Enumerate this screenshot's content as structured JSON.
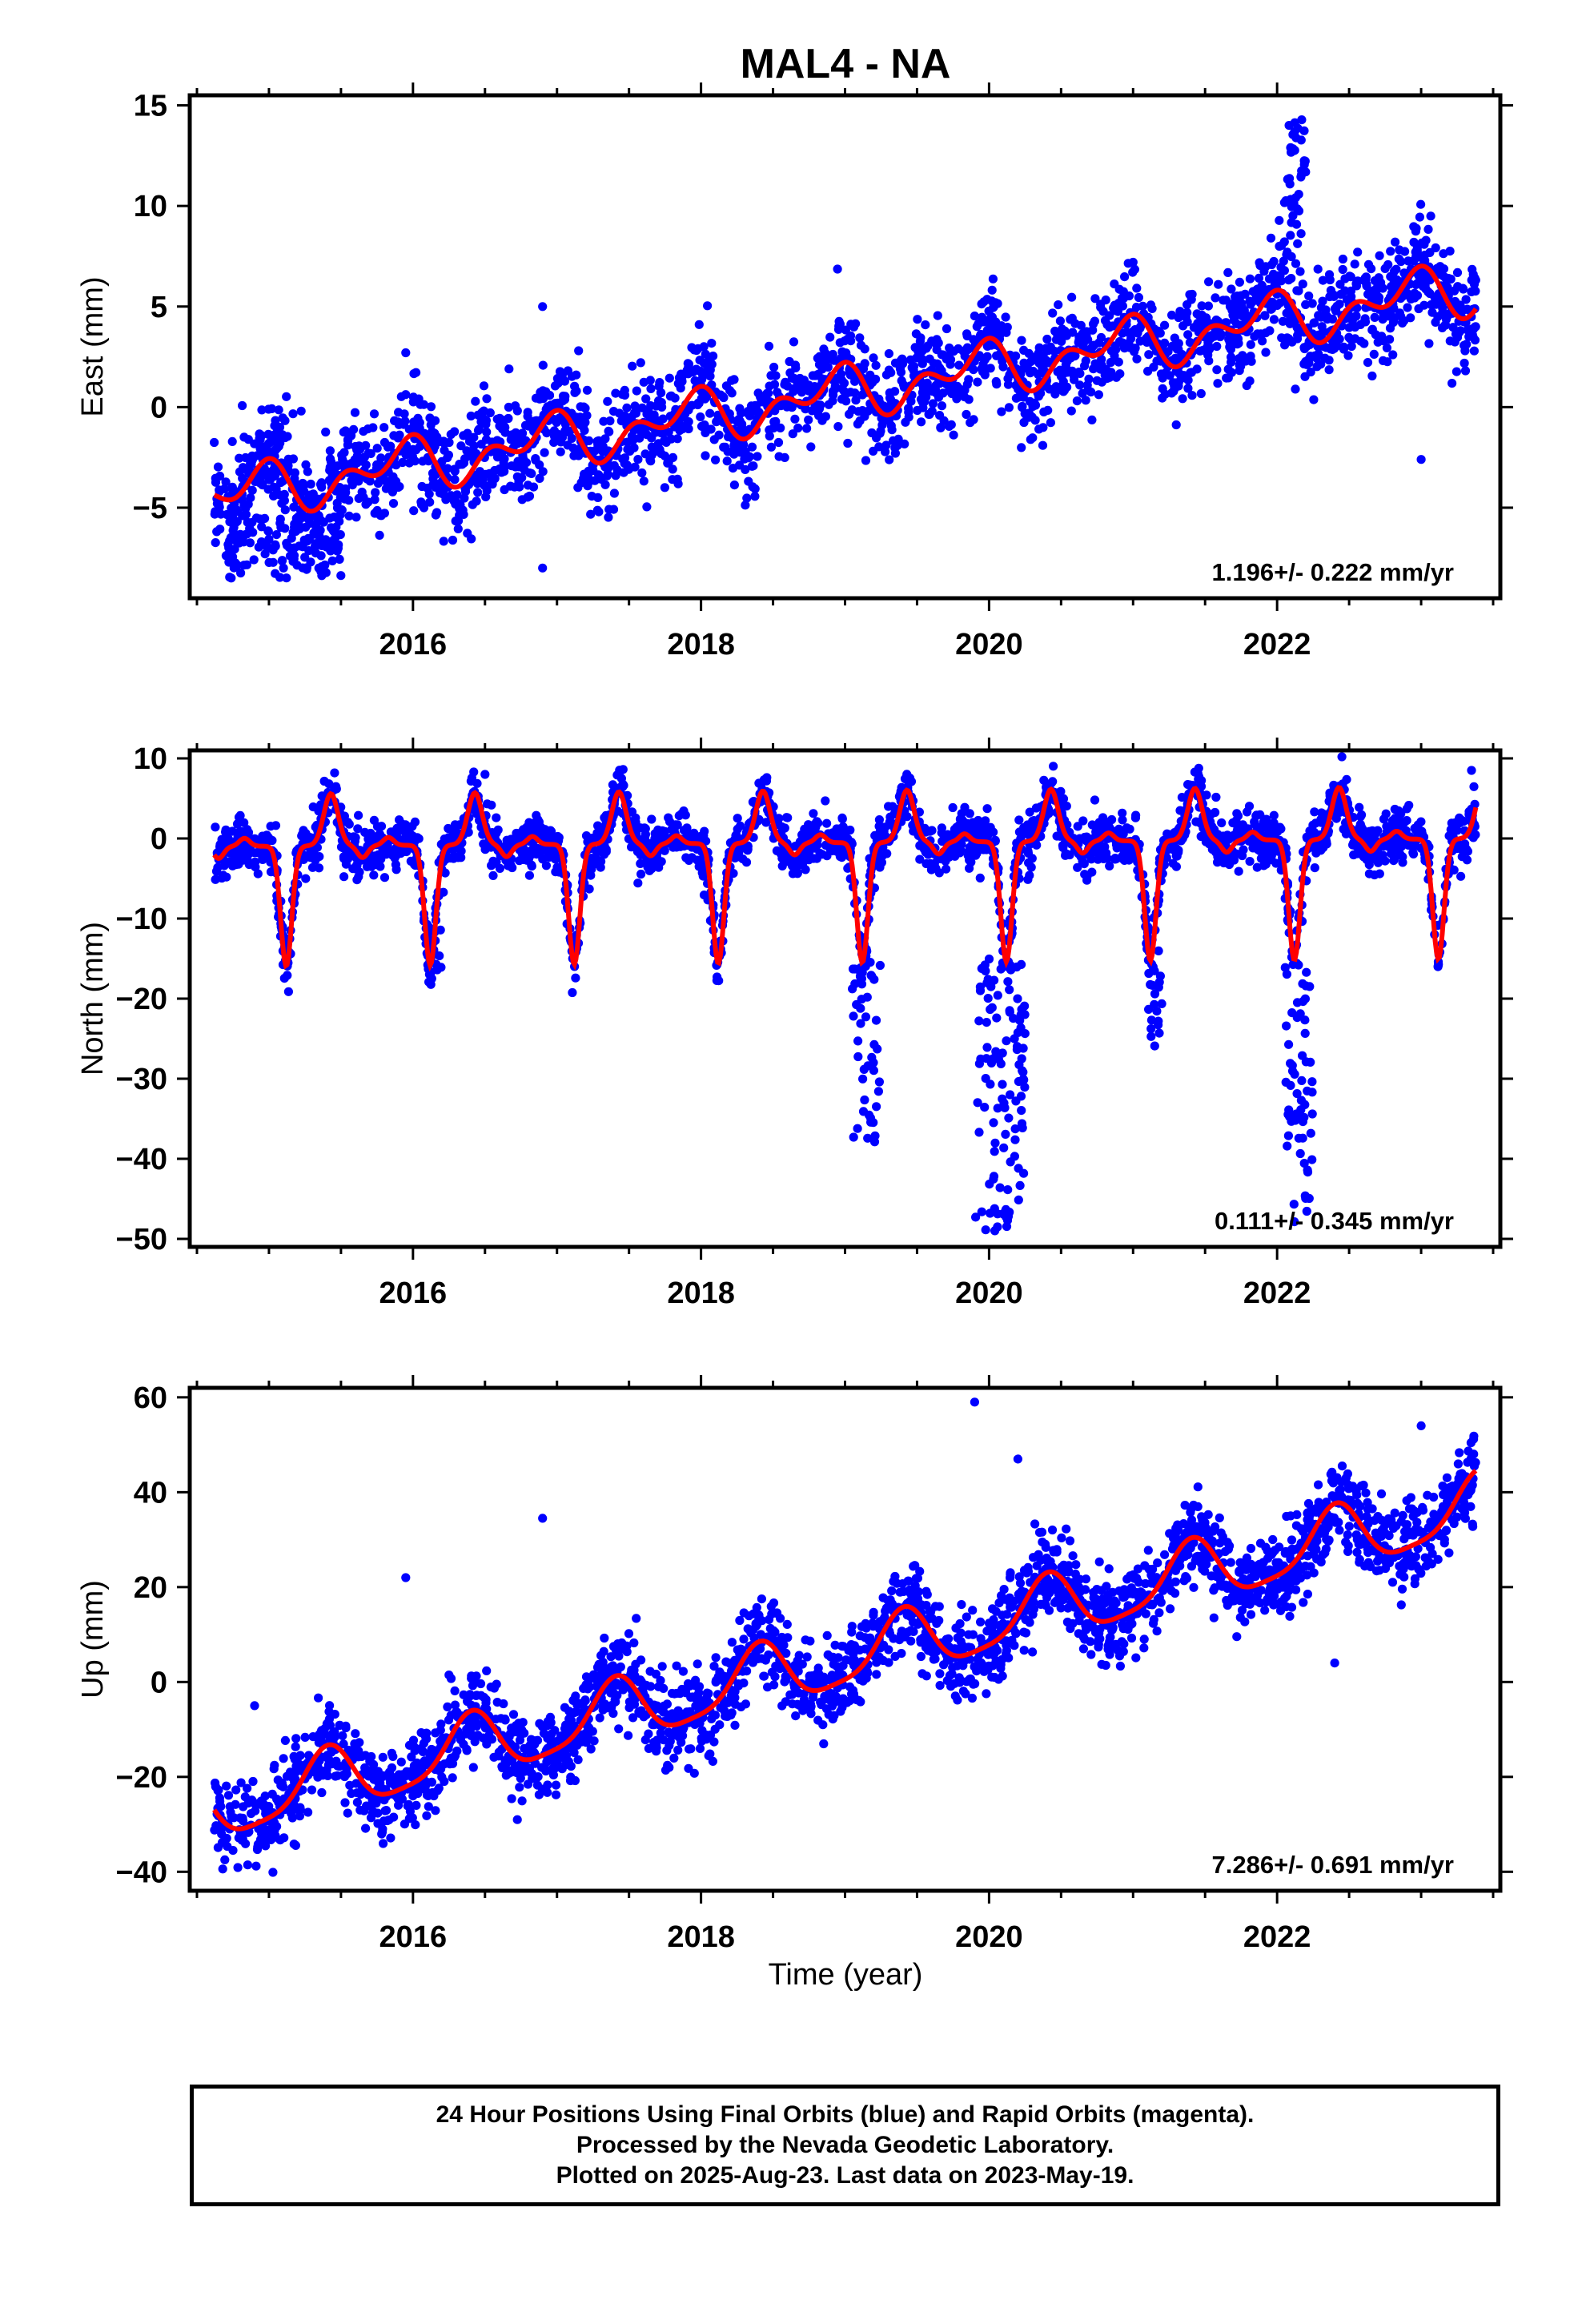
{
  "title": "MAL4 - NA",
  "xlabel": "Time (year)",
  "footer": {
    "line1": "24 Hour Positions Using Final Orbits (blue) and Rapid Orbits (magenta).",
    "line2": "Processed by the Nevada Geodetic Laboratory.",
    "line3": "Plotted on 2025-Aug-23. Last data on 2023-May-19."
  },
  "colors": {
    "data": "#0000ff",
    "model": "#ff0000",
    "axis": "#000000"
  },
  "chart_data": [
    {
      "type": "scatter",
      "ylabel": "East (mm)",
      "rate": "1.196+/- 0.222 mm/yr",
      "xlim": [
        2014.45,
        2023.55
      ],
      "ylim": [
        -9.5,
        15.5
      ],
      "xticks": [
        2016,
        2018,
        2020,
        2022
      ],
      "yticks": [
        -5,
        0,
        5,
        10,
        15
      ],
      "model": {
        "start": 2014.62,
        "end": 2023.38,
        "slope": 1.196,
        "offset": -4.5,
        "annual_amp": 0.9,
        "annual_phase": 0.35,
        "semi_amp": 0.8,
        "semi_phase": 0.6
      },
      "points": {
        "start": 2014.62,
        "end": 2023.38,
        "n": 2600,
        "noise": 1.3,
        "seed": 11
      },
      "anomalies": [
        {
          "x0": 2022.05,
          "x1": 2022.2,
          "y0": 8,
          "y1": 14.8,
          "n": 40
        },
        {
          "x0": 2014.7,
          "x1": 2015.5,
          "y0": -8.5,
          "y1": -5.5,
          "n": 120
        }
      ],
      "outliers": [
        [
          2015.95,
          2.7
        ],
        [
          2016.9,
          5.0
        ],
        [
          2017.15,
          2.8
        ],
        [
          2021.0,
          7.2
        ],
        [
          2023.0,
          -2.6
        ],
        [
          2016.9,
          -8.0
        ]
      ]
    },
    {
      "type": "scatter",
      "ylabel": "North (mm)",
      "rate": "0.111+/- 0.345 mm/yr",
      "xlim": [
        2014.45,
        2023.55
      ],
      "ylim": [
        -51,
        11
      ],
      "xticks": [
        2016,
        2018,
        2020,
        2022
      ],
      "yticks": [
        -50,
        -40,
        -30,
        -20,
        -10,
        0,
        10
      ],
      "model": {
        "start": 2014.62,
        "end": 2023.38,
        "slope": 0.111,
        "offset": -1.0,
        "pattern": "north"
      },
      "points": {
        "start": 2014.62,
        "end": 2023.38,
        "n": 2600,
        "noise": 1.6,
        "seed": 23
      },
      "anomalies": [
        {
          "x0": 2019.05,
          "x1": 2019.25,
          "y0": -38,
          "y1": -15,
          "n": 45
        },
        {
          "x0": 2019.9,
          "x1": 2020.25,
          "y0": -49.5,
          "y1": -15,
          "n": 110
        },
        {
          "x0": 2022.05,
          "x1": 2022.25,
          "y0": -48,
          "y1": -15,
          "n": 60
        },
        {
          "x0": 2021.1,
          "x1": 2021.2,
          "y0": -27,
          "y1": -14,
          "n": 20
        },
        {
          "x0": 2016.1,
          "x1": 2016.2,
          "y0": -17,
          "y1": -10,
          "n": 15
        }
      ],
      "outliers": [
        [
          2016.5,
          8.0
        ],
        [
          2022.45,
          10.2
        ],
        [
          2023.35,
          8.5
        ]
      ]
    },
    {
      "type": "scatter",
      "ylabel": "Up (mm)",
      "rate": "7.286+/- 0.691 mm/yr",
      "xlim": [
        2014.45,
        2023.55
      ],
      "ylim": [
        -44,
        62
      ],
      "xticks": [
        2016,
        2018,
        2020,
        2022
      ],
      "yticks": [
        -40,
        -20,
        0,
        20,
        40,
        60
      ],
      "model": {
        "start": 2014.62,
        "end": 2023.38,
        "slope": 7.286,
        "offset": -27.0,
        "annual_amp": 6.5,
        "annual_phase": 0.85,
        "semi_amp": 1.5,
        "semi_phase": 0.2
      },
      "points": {
        "start": 2014.62,
        "end": 2023.38,
        "n": 2600,
        "noise": 4.5,
        "seed": 37
      },
      "anomalies": [],
      "outliers": [
        [
          2014.9,
          -5
        ],
        [
          2015.95,
          22
        ],
        [
          2016.9,
          34.5
        ],
        [
          2019.9,
          59
        ],
        [
          2020.2,
          47
        ],
        [
          2023.0,
          54
        ],
        [
          2022.4,
          4
        ]
      ]
    }
  ]
}
